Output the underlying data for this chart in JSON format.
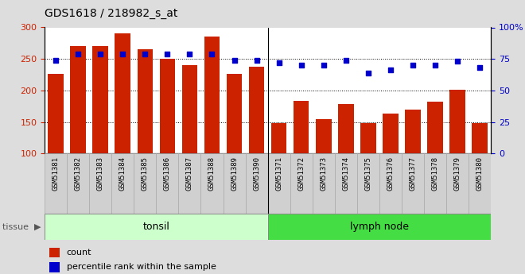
{
  "title": "GDS1618 / 218982_s_at",
  "categories": [
    "GSM51381",
    "GSM51382",
    "GSM51383",
    "GSM51384",
    "GSM51385",
    "GSM51386",
    "GSM51387",
    "GSM51388",
    "GSM51389",
    "GSM51390",
    "GSM51371",
    "GSM51372",
    "GSM51373",
    "GSM51374",
    "GSM51375",
    "GSM51376",
    "GSM51377",
    "GSM51378",
    "GSM51379",
    "GSM51380"
  ],
  "bar_values": [
    226,
    270,
    270,
    290,
    265,
    250,
    240,
    285,
    226,
    237,
    148,
    183,
    154,
    179,
    148,
    163,
    169,
    182,
    201,
    148
  ],
  "dot_values": [
    74,
    79,
    79,
    79,
    79,
    79,
    79,
    79,
    74,
    74,
    72,
    70,
    70,
    74,
    64,
    66,
    70,
    70,
    73,
    68
  ],
  "bar_color": "#cc2200",
  "dot_color": "#0000cc",
  "ylim_left": [
    100,
    300
  ],
  "ylim_right": [
    0,
    100
  ],
  "yticks_left": [
    100,
    150,
    200,
    250,
    300
  ],
  "yticks_right": [
    0,
    25,
    50,
    75,
    100
  ],
  "grid_values": [
    150,
    200,
    250
  ],
  "n_tonsil": 10,
  "n_lymph": 10,
  "tonsil_color": "#ccffcc",
  "lymph_color": "#44dd44",
  "tissue_label": "tissue",
  "legend_count_label": "count",
  "legend_pct_label": "percentile rank within the sample",
  "fig_bg_color": "#dddddd",
  "plot_bg_color": "#ffffff",
  "xtick_bg_color": "#d0d0d0"
}
